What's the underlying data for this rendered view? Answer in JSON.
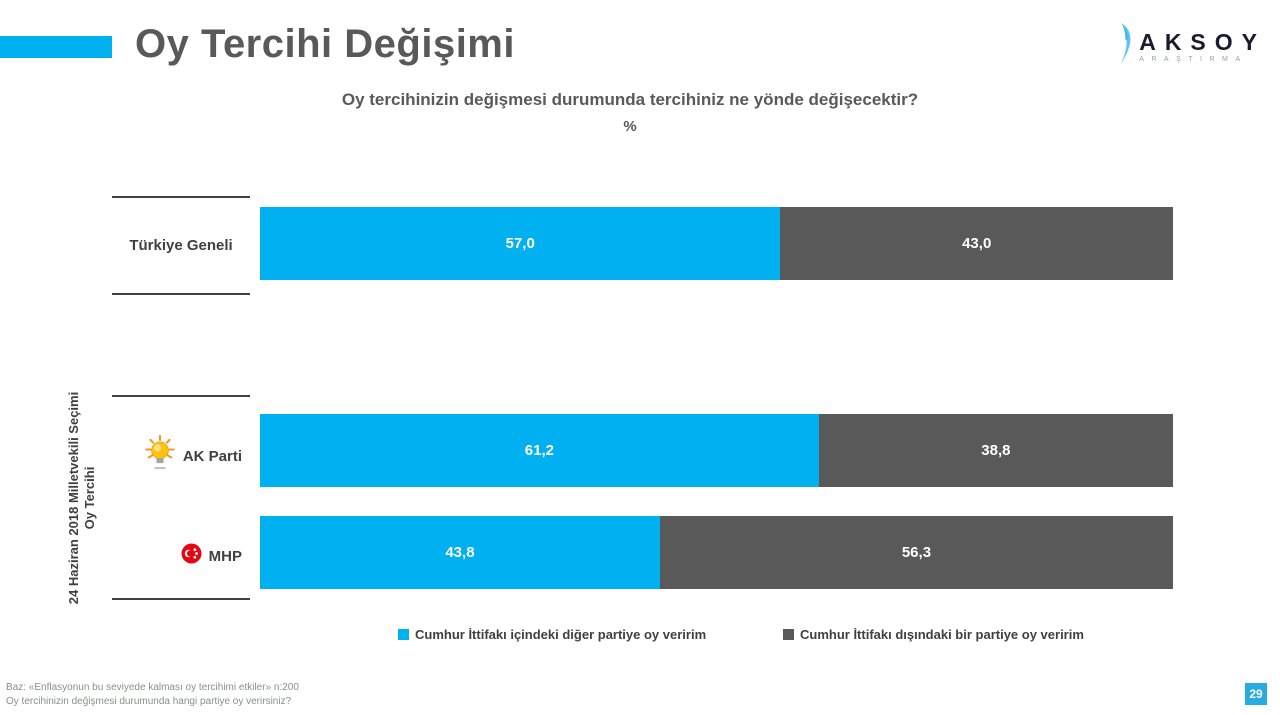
{
  "page": {
    "title": "Oy Tercihi Değişimi",
    "page_number": "29"
  },
  "logo": {
    "name": "AKSOY",
    "subtitle": "ARAŞTIRMA"
  },
  "subtitle": {
    "question": "Oy tercihinizin değişmesi durumunda tercihiniz  ne yönde değişecektir?",
    "unit": "%"
  },
  "chart_data": {
    "type": "bar",
    "orientation": "horizontal",
    "stacked": true,
    "unit": "%",
    "xlim": [
      0,
      100
    ],
    "grid": false,
    "legend_position": "bottom",
    "categories": [
      "Türkiye Geneli",
      "AK Parti",
      "MHP"
    ],
    "category_icons": [
      null,
      "akp-lightbulb-logo",
      "mhp-crescent-logo"
    ],
    "group_label": {
      "line1": "24 Haziran 2018 Milletvekili Seçimi",
      "line2": "Oy Tercihi",
      "applies_to": [
        "AK Parti",
        "MHP"
      ]
    },
    "series": [
      {
        "name": "Cumhur İttifakı içindeki diğer partiye oy veririm",
        "color": "#00B0F0",
        "values": [
          57.0,
          61.2,
          43.8
        ]
      },
      {
        "name": "Cumhur İttifakı dışındaki bir partiye oy veririm",
        "color": "#595959",
        "values": [
          43.0,
          38.8,
          56.3
        ]
      }
    ],
    "value_labels": [
      [
        "57,0",
        "43,0"
      ],
      [
        "61,2",
        "38,8"
      ],
      [
        "43,8",
        "56,3"
      ]
    ]
  },
  "footer": {
    "base_note": "Baz: «Enflasyonun bu seviyede kalması oy tercihimi etkiler» n:200",
    "question_note": "Oy tercihinizin değişmesi durumunda hangi partiye oy verirsiniz?"
  },
  "colors": {
    "accent_blue": "#00B0F0",
    "bar_gray": "#595959",
    "badge_blue": "#29ABE2",
    "akp_yellow": "#FFC20E",
    "mhp_red": "#E30613"
  }
}
